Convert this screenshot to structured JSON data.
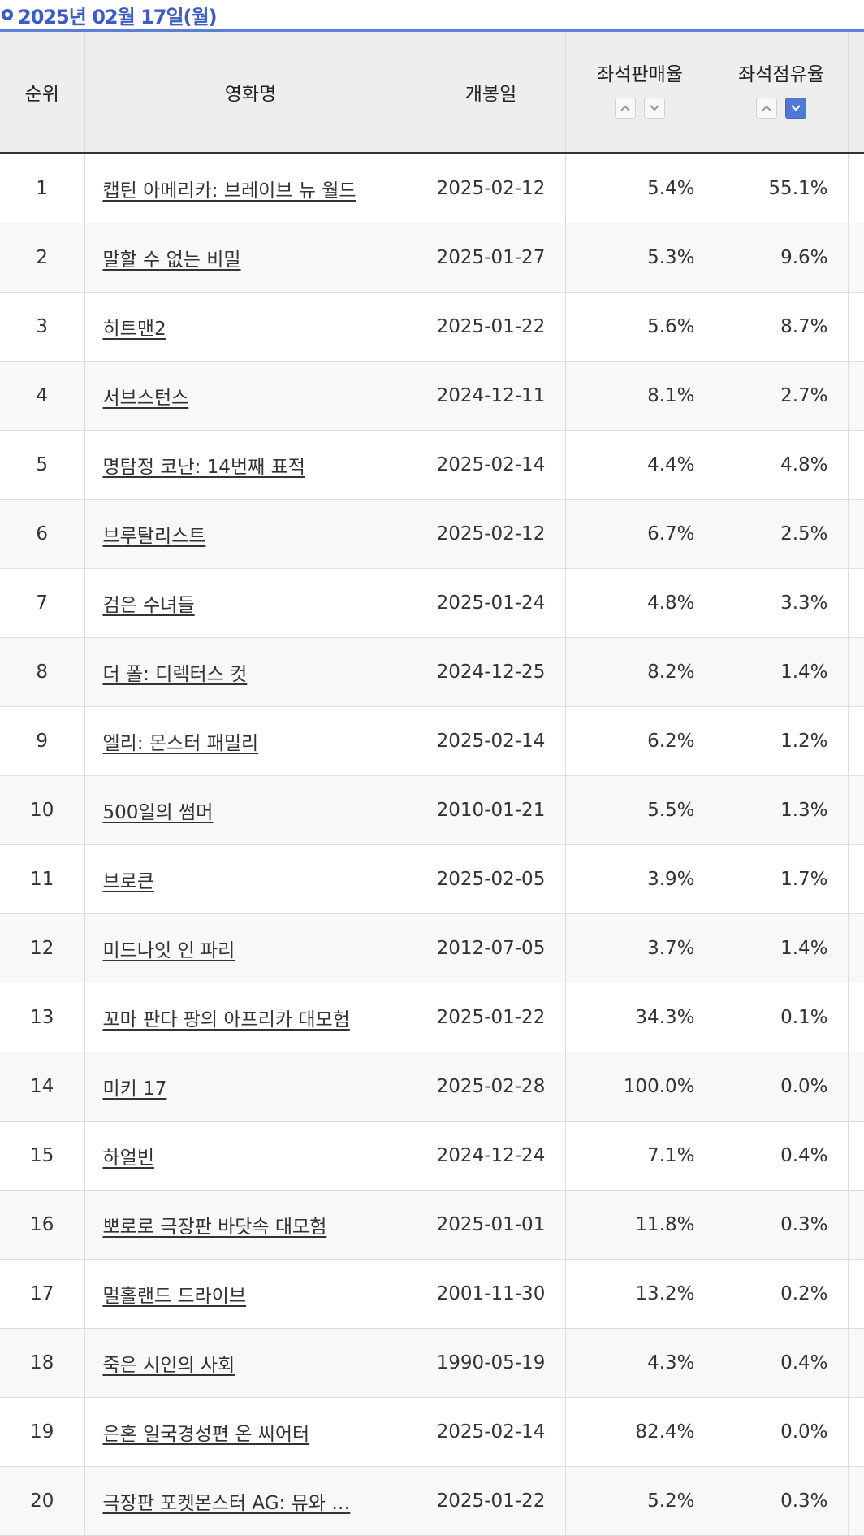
{
  "header_date": "2025년 02월 17일(월)",
  "columns": {
    "rank": "순위",
    "title": "영화명",
    "release_date": "개봉일",
    "seat_sales_rate": "좌석판매율",
    "seat_share_rate": "좌석점유율"
  },
  "sort": {
    "seat_sales_rate": "none",
    "seat_share_rate": "descending"
  },
  "colors": {
    "accent": "#3b5cc4",
    "active_sort": "#5277d9"
  },
  "rows": [
    {
      "rank": "1",
      "title": "캡틴 아메리카: 브레이브 뉴 월드",
      "release_date": "2025-02-12",
      "seat_sales_rate": "5.4%",
      "seat_share_rate": "55.1%"
    },
    {
      "rank": "2",
      "title": "말할 수 없는 비밀",
      "release_date": "2025-01-27",
      "seat_sales_rate": "5.3%",
      "seat_share_rate": "9.6%"
    },
    {
      "rank": "3",
      "title": "히트맨2",
      "release_date": "2025-01-22",
      "seat_sales_rate": "5.6%",
      "seat_share_rate": "8.7%"
    },
    {
      "rank": "4",
      "title": "서브스턴스",
      "release_date": "2024-12-11",
      "seat_sales_rate": "8.1%",
      "seat_share_rate": "2.7%"
    },
    {
      "rank": "5",
      "title": "명탐정 코난: 14번째 표적",
      "release_date": "2025-02-14",
      "seat_sales_rate": "4.4%",
      "seat_share_rate": "4.8%"
    },
    {
      "rank": "6",
      "title": "브루탈리스트",
      "release_date": "2025-02-12",
      "seat_sales_rate": "6.7%",
      "seat_share_rate": "2.5%"
    },
    {
      "rank": "7",
      "title": "검은 수녀들",
      "release_date": "2025-01-24",
      "seat_sales_rate": "4.8%",
      "seat_share_rate": "3.3%"
    },
    {
      "rank": "8",
      "title": "더 폴: 디렉터스 컷",
      "release_date": "2024-12-25",
      "seat_sales_rate": "8.2%",
      "seat_share_rate": "1.4%"
    },
    {
      "rank": "9",
      "title": "엘리: 몬스터 패밀리",
      "release_date": "2025-02-14",
      "seat_sales_rate": "6.2%",
      "seat_share_rate": "1.2%"
    },
    {
      "rank": "10",
      "title": "500일의 썸머",
      "release_date": "2010-01-21",
      "seat_sales_rate": "5.5%",
      "seat_share_rate": "1.3%"
    },
    {
      "rank": "11",
      "title": "브로큰",
      "release_date": "2025-02-05",
      "seat_sales_rate": "3.9%",
      "seat_share_rate": "1.7%"
    },
    {
      "rank": "12",
      "title": "미드나잇 인 파리",
      "release_date": "2012-07-05",
      "seat_sales_rate": "3.7%",
      "seat_share_rate": "1.4%"
    },
    {
      "rank": "13",
      "title": "꼬마 판다 팡의 아프리카 대모험",
      "release_date": "2025-01-22",
      "seat_sales_rate": "34.3%",
      "seat_share_rate": "0.1%"
    },
    {
      "rank": "14",
      "title": "미키 17",
      "release_date": "2025-02-28",
      "seat_sales_rate": "100.0%",
      "seat_share_rate": "0.0%"
    },
    {
      "rank": "15",
      "title": "하얼빈",
      "release_date": "2024-12-24",
      "seat_sales_rate": "7.1%",
      "seat_share_rate": "0.4%"
    },
    {
      "rank": "16",
      "title": "뽀로로 극장판 바닷속 대모험",
      "release_date": "2025-01-01",
      "seat_sales_rate": "11.8%",
      "seat_share_rate": "0.3%"
    },
    {
      "rank": "17",
      "title": "멀홀랜드 드라이브",
      "release_date": "2001-11-30",
      "seat_sales_rate": "13.2%",
      "seat_share_rate": "0.2%"
    },
    {
      "rank": "18",
      "title": "죽은 시인의 사회",
      "release_date": "1990-05-19",
      "seat_sales_rate": "4.3%",
      "seat_share_rate": "0.4%"
    },
    {
      "rank": "19",
      "title": "은혼 일국경성편 온 씨어터",
      "release_date": "2025-02-14",
      "seat_sales_rate": "82.4%",
      "seat_share_rate": "0.0%"
    },
    {
      "rank": "20",
      "title": "극장판 포켓몬스터 AG: 뮤와 …",
      "release_date": "2025-01-22",
      "seat_sales_rate": "5.2%",
      "seat_share_rate": "0.3%"
    }
  ]
}
